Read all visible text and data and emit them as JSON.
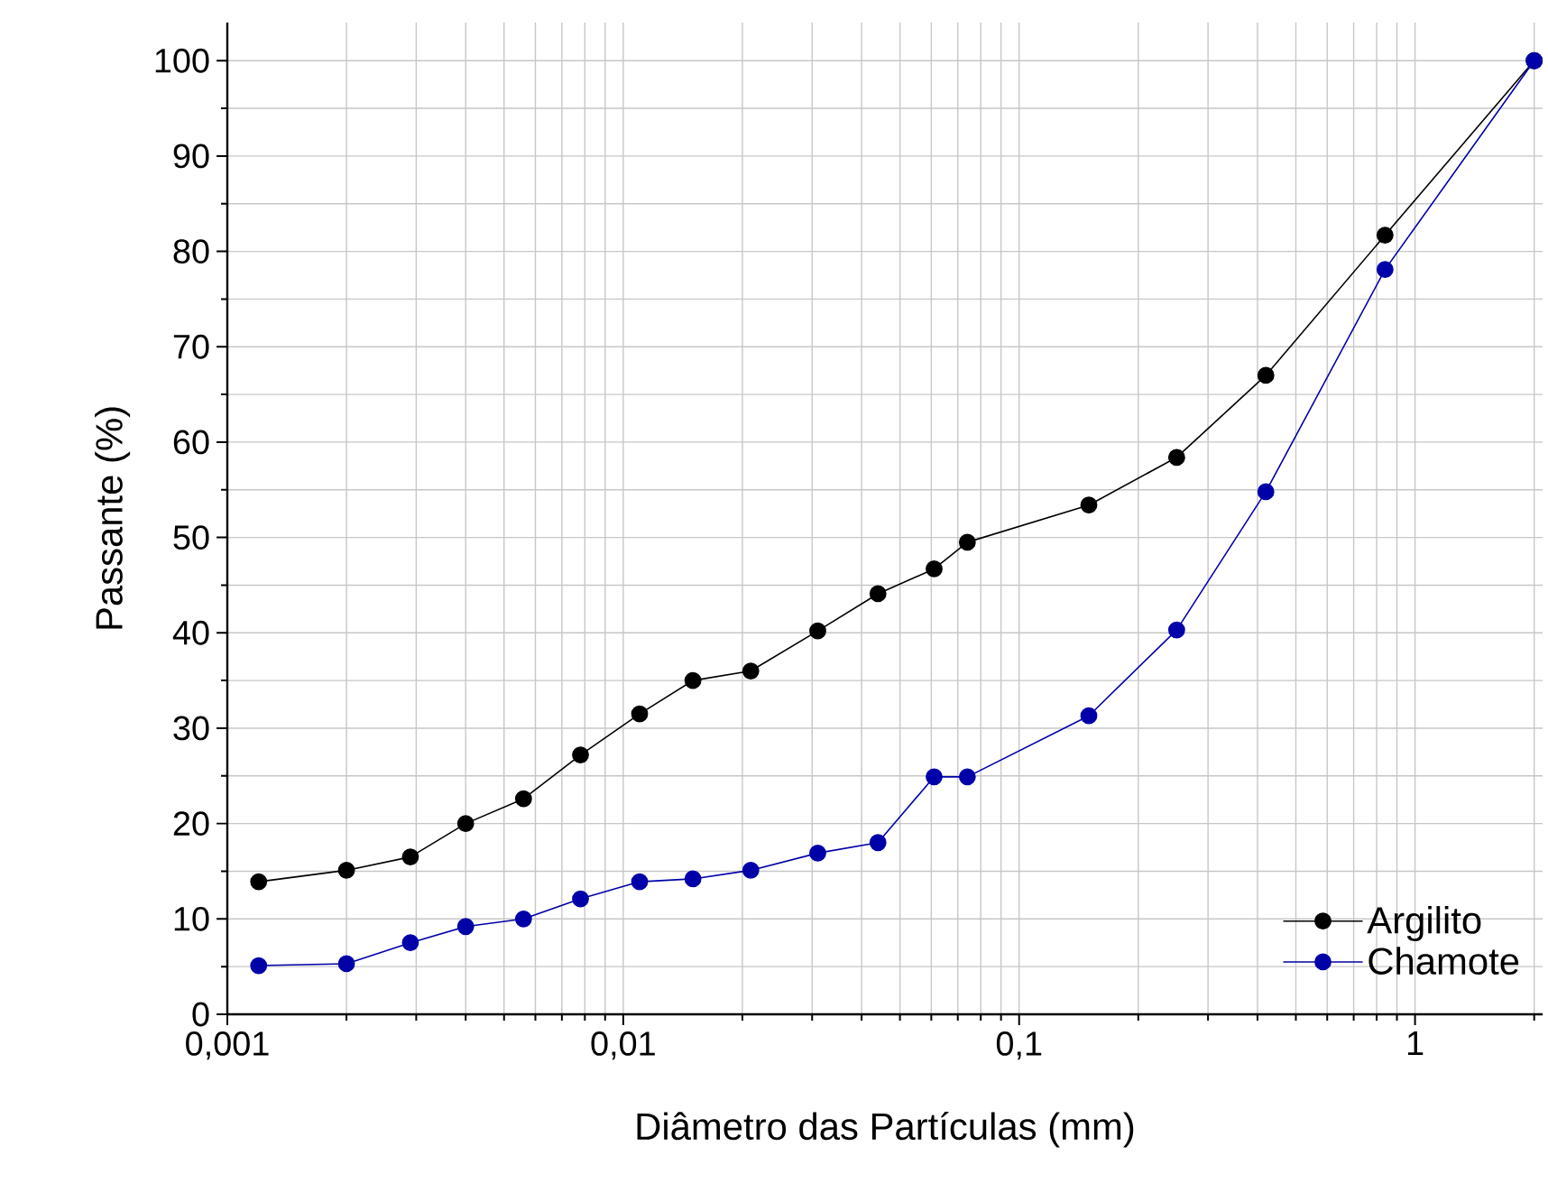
{
  "chart_data": {
    "type": "line",
    "xlabel": "Diâmetro das Partículas (mm)",
    "ylabel": "Passante (%)",
    "log": "x",
    "x": [
      0.0012,
      0.002,
      0.0029,
      0.004,
      0.0056,
      0.0078,
      0.011,
      0.015,
      0.021,
      0.031,
      0.044,
      0.061,
      0.074,
      0.15,
      0.25,
      0.42,
      0.84,
      2
    ],
    "series": [
      {
        "name": "Argilito",
        "color": "#000000",
        "values": [
          13.9,
          15.1,
          16.5,
          20.0,
          22.6,
          27.2,
          31.5,
          35.0,
          36.0,
          40.2,
          44.1,
          46.7,
          49.5,
          53.4,
          58.4,
          67.0,
          81.7,
          100
        ]
      },
      {
        "name": "Chamote",
        "color": "#0000a8",
        "values": [
          5.1,
          5.3,
          7.5,
          9.2,
          10.0,
          12.1,
          13.9,
          14.2,
          15.1,
          16.9,
          18.0,
          24.9,
          24.9,
          31.3,
          40.3,
          54.8,
          78.1,
          100
        ]
      }
    ],
    "xlim": [
      0.001,
      2.1
    ],
    "ylim": [
      0,
      104
    ],
    "xticks": [
      {
        "value": 0.001,
        "label": "0,001"
      },
      {
        "value": 0.01,
        "label": "0,01"
      },
      {
        "value": 0.1,
        "label": "0,1"
      },
      1
    ],
    "yticks": [
      0,
      10,
      20,
      30,
      40,
      50,
      60,
      70,
      80,
      90,
      100
    ],
    "grid": true,
    "legend": "bottom right",
    "marker": "circle",
    "line_style": "solid"
  }
}
